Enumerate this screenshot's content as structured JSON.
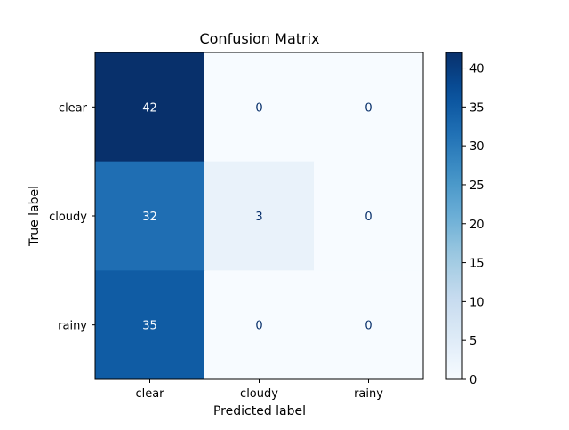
{
  "chart_data": {
    "type": "heatmap",
    "title": "Confusion Matrix",
    "xlabel": "Predicted label",
    "ylabel": "True label",
    "x_categories": [
      "clear",
      "cloudy",
      "rainy"
    ],
    "y_categories": [
      "clear",
      "cloudy",
      "rainy"
    ],
    "values": [
      [
        42,
        0,
        0
      ],
      [
        32,
        3,
        0
      ],
      [
        35,
        0,
        0
      ]
    ],
    "colormap": "Blues",
    "colorbar": {
      "range": [
        0,
        42
      ],
      "ticks": [
        0,
        5,
        10,
        15,
        20,
        25,
        30,
        35,
        40
      ]
    },
    "colors": {
      "low": "#f7fbff",
      "high": "#08306b",
      "text_dark": "#08306b",
      "text_light": "#f7fbff"
    }
  }
}
